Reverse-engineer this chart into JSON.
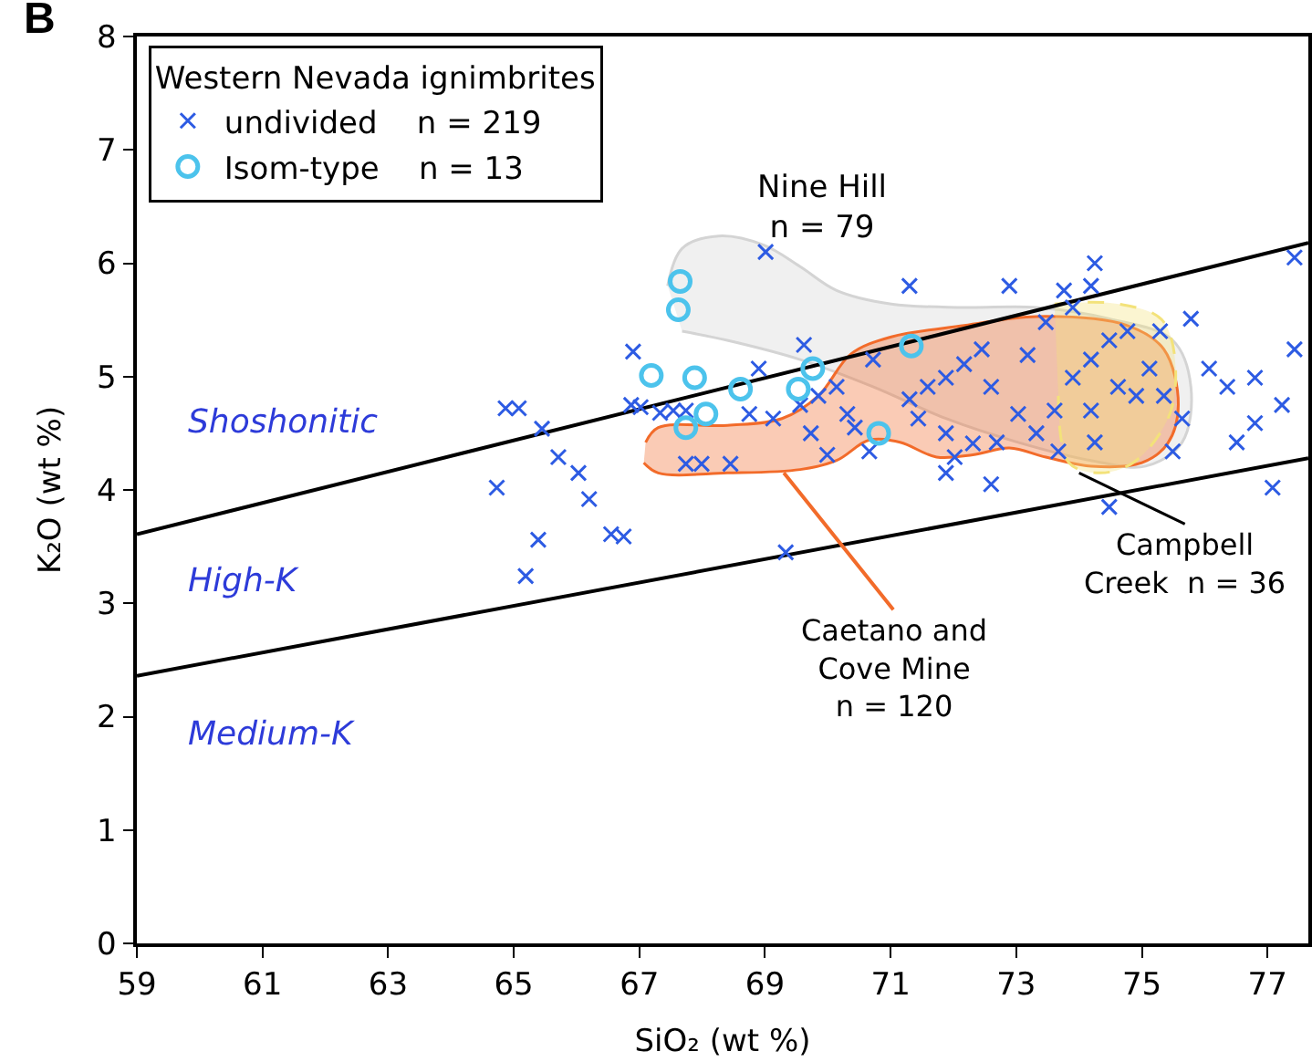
{
  "chart_data": {
    "type": "scatter",
    "xlabel": "SiO₂ (wt %)",
    "ylabel": "K₂O (wt %)",
    "xlim": [
      59,
      77.65
    ],
    "ylim": [
      0,
      8
    ],
    "xticks": [
      59,
      61,
      63,
      65,
      67,
      69,
      71,
      73,
      75,
      77
    ],
    "yticks": [
      0,
      1,
      2,
      3,
      4,
      5,
      6,
      7,
      8
    ],
    "legend": "top left",
    "legend_title": "Western Nevada ignimbrites",
    "annotations": [
      "B",
      "Nine Hill\nn = 79",
      {
        "text": "Caetano and\nCove Mine\nn = 120",
        "x": 69.3,
        "y": 4.15
      },
      {
        "text": "Campbell\nCreek  n = 36",
        "x": 74.0,
        "y": 4.15
      },
      "Shoshonitic",
      "High-K",
      "Medium-K"
    ],
    "series": [
      {
        "type": "area",
        "color": "#d4d4d4",
        "x": [
          67.45,
          67.68,
          68.26,
          68.98,
          69.56,
          70.14,
          71.01,
          72.17,
          73.32,
          74.48,
          75.49,
          75.78,
          75.64,
          75.06,
          74.19,
          73.03,
          71.88,
          70.72,
          69.56,
          68.4,
          67.68
        ],
        "values": [
          5.8,
          6.13,
          6.24,
          6.16,
          5.97,
          5.76,
          5.64,
          5.61,
          5.61,
          5.51,
          5.32,
          4.91,
          4.42,
          4.21,
          4.26,
          4.42,
          4.63,
          4.91,
          5.15,
          5.32,
          5.4
        ]
      },
      {
        "type": "area",
        "color": "#f26b2a",
        "x": [
          67.1,
          67.3,
          68.4,
          69.27,
          69.85,
          70.37,
          71.01,
          72.17,
          73.32,
          74.77,
          75.35,
          75.58,
          75.41,
          75.0,
          74.19,
          73.47,
          72.89,
          72.31,
          71.73,
          71.15,
          70.66,
          70.14,
          69.56,
          68.4,
          67.3,
          67.07
        ],
        "values": [
          4.42,
          4.55,
          4.57,
          4.63,
          4.83,
          5.2,
          5.35,
          5.45,
          5.53,
          5.45,
          5.24,
          4.75,
          4.41,
          4.24,
          4.21,
          4.29,
          4.37,
          4.31,
          4.29,
          4.42,
          4.44,
          4.26,
          4.18,
          4.15,
          4.15,
          4.24
        ]
      },
      {
        "type": "area",
        "color": "#f3e27a",
        "line_style": "dashed",
        "x": [
          73.61,
          74.63,
          75.35,
          75.49,
          74.91,
          74.34,
          73.84,
          73.67
        ],
        "values": [
          5.64,
          5.64,
          5.48,
          4.75,
          4.26,
          4.15,
          4.24,
          4.83
        ]
      },
      {
        "type": "line",
        "color": "#000000",
        "x": [
          59,
          77.65
        ],
        "values": [
          3.61,
          6.18
        ]
      },
      {
        "type": "line",
        "color": "#000000",
        "x": [
          59,
          77.65
        ],
        "values": [
          2.36,
          4.28
        ]
      },
      {
        "name": "undivided    n = 219",
        "color": "#2d5be3",
        "marker": "cross",
        "x": [
          64.87,
          65.08,
          65.45,
          65.71,
          66.03,
          66.2,
          64.73,
          65.39,
          65.19,
          66.87,
          67.02,
          67.33,
          67.54,
          67.74,
          66.9,
          66.55,
          66.75,
          69.01,
          69.33,
          67.74,
          67.99,
          68.45,
          68.9,
          69.62,
          68.75,
          69.13,
          69.56,
          69.85,
          70.14,
          70.31,
          69.73,
          69.99,
          70.66,
          70.43,
          71.3,
          71.59,
          71.88,
          72.17,
          72.45,
          71.44,
          71.88,
          72.02,
          72.31,
          72.69,
          73.03,
          73.32,
          73.61,
          73.9,
          74.19,
          74.48,
          74.77,
          73.47,
          73.9,
          74.19,
          74.25,
          73.76,
          74.62,
          74.91,
          74.19,
          73.67,
          74.48,
          74.25,
          75.29,
          75.78,
          75.35,
          75.64,
          76.07,
          76.36,
          76.8,
          77.23,
          77.43,
          77.08,
          76.8,
          75.49,
          75.12,
          72.89,
          71.3,
          70.72,
          72.6,
          71.88,
          73.18,
          72.6,
          77.43,
          76.51
        ],
        "values": [
          4.72,
          4.72,
          4.54,
          4.29,
          4.15,
          3.92,
          4.02,
          3.56,
          3.24,
          4.75,
          4.73,
          4.68,
          4.7,
          4.7,
          5.22,
          3.61,
          3.59,
          6.1,
          3.45,
          4.23,
          4.23,
          4.23,
          5.07,
          5.28,
          4.67,
          4.63,
          4.75,
          4.83,
          4.91,
          4.67,
          4.5,
          4.31,
          4.34,
          4.55,
          4.8,
          4.91,
          4.99,
          5.11,
          5.24,
          4.63,
          4.5,
          4.29,
          4.41,
          4.42,
          4.67,
          4.5,
          4.7,
          4.99,
          5.15,
          5.32,
          5.4,
          5.48,
          5.61,
          5.8,
          6.0,
          5.76,
          4.91,
          4.83,
          4.7,
          4.34,
          3.85,
          4.42,
          5.4,
          5.51,
          4.83,
          4.63,
          5.07,
          4.91,
          4.99,
          4.75,
          6.05,
          4.02,
          4.59,
          4.34,
          5.07,
          5.8,
          5.8,
          5.15,
          4.05,
          4.15,
          5.19,
          4.91,
          5.24,
          4.42
        ]
      },
      {
        "name": "Isom-type    n = 13",
        "color": "#4cc3ec",
        "marker": "circle",
        "x": [
          67.65,
          67.62,
          67.19,
          67.88,
          68.61,
          68.06,
          67.74,
          69.53,
          69.76,
          71.33,
          70.81
        ],
        "values": [
          5.84,
          5.59,
          5.01,
          4.99,
          4.89,
          4.67,
          4.55,
          4.89,
          5.07,
          5.27,
          4.5
        ]
      }
    ]
  }
}
